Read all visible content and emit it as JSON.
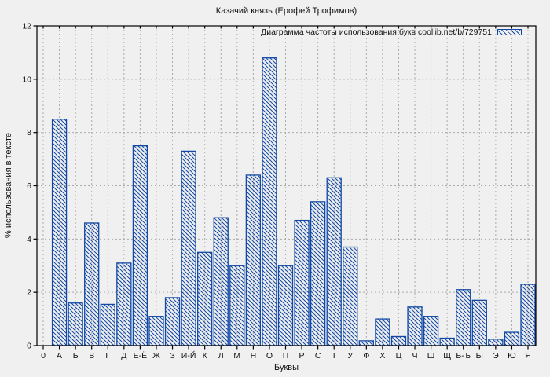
{
  "window": {
    "background_color": "#f0f0f0"
  },
  "chart_data": {
    "type": "bar",
    "title": "Казачий князь (Ерофей Трофимов)",
    "legend_label": "Диаграмма частоты использования букв coollib.net/b/729751",
    "legend_position": "top-right",
    "xlabel": "Буквы",
    "ylabel": "% использования в тексте",
    "ylim": [
      0,
      12
    ],
    "ytick_step": 2,
    "grid": true,
    "grid_style": "dashed",
    "categories": [
      "0",
      "А",
      "Б",
      "В",
      "Г",
      "Д",
      "Е-Ё",
      "Ж",
      "З",
      "И-Й",
      "К",
      "Л",
      "М",
      "Н",
      "О",
      "П",
      "Р",
      "С",
      "Т",
      "У",
      "Ф",
      "Х",
      "Ц",
      "Ч",
      "Ш",
      "Щ",
      "Ь-Ъ",
      "Ы",
      "Э",
      "Ю",
      "Я"
    ],
    "values": [
      0,
      8.5,
      1.6,
      4.6,
      1.55,
      3.1,
      7.5,
      1.1,
      1.8,
      7.3,
      3.5,
      4.8,
      3.0,
      6.4,
      10.8,
      3.0,
      4.7,
      5.4,
      6.3,
      3.7,
      0.18,
      1.0,
      0.34,
      1.45,
      1.1,
      0.28,
      2.1,
      1.7,
      0.24,
      0.5,
      2.3
    ],
    "bar_style": "hatched-diagonal",
    "bar_color": "#1249a5",
    "frame_color": "#000000",
    "gridline_color": "#aaaaaa",
    "text_color": "#111111"
  }
}
